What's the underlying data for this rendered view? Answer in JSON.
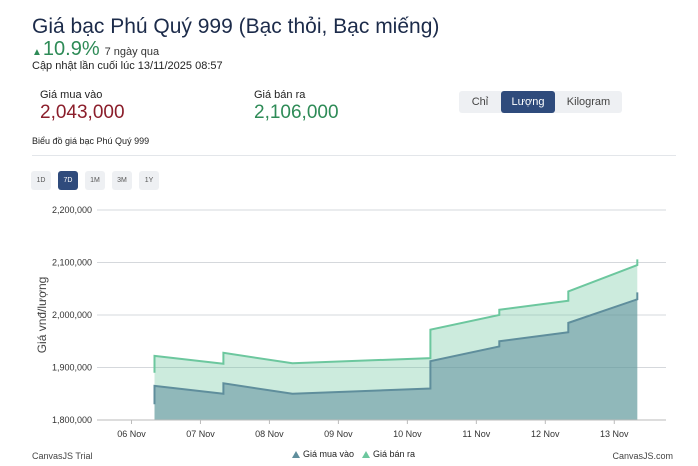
{
  "header": {
    "title": "Giá bạc Phú Quý 999 (Bạc thỏi, Bạc miếng)",
    "change_value": "10.9%",
    "change_period": "7 ngày qua",
    "updated": "Cập nhật lần cuối lúc 13/11/2025 08:57"
  },
  "prices": {
    "buy_label": "Giá mua vào",
    "buy_value": "2,043,000",
    "sell_label": "Giá bán ra",
    "sell_value": "2,106,000"
  },
  "unit_tabs": [
    {
      "label": "Chỉ",
      "active": false
    },
    {
      "label": "Lượng",
      "active": true
    },
    {
      "label": "Kilogram",
      "active": false
    }
  ],
  "chart_caption": "Biểu đồ giá bạc Phú Quý 999",
  "range_buttons": [
    {
      "label": "1D",
      "active": false
    },
    {
      "label": "7D",
      "active": true
    },
    {
      "label": "1M",
      "active": false
    },
    {
      "label": "3M",
      "active": false
    },
    {
      "label": "1Y",
      "active": false
    }
  ],
  "colors": {
    "buy_series": "#5f8e9c",
    "sell_series": "#6cc79e",
    "accent": "#2f4b7c",
    "up": "#2e8b57",
    "buy_value": "#8b1e2b"
  },
  "chart_data": {
    "type": "area",
    "ylabel": "Giá vnđ/lượng",
    "ylim": [
      1800000,
      2200000
    ],
    "yticks": [
      1800000,
      1900000,
      2000000,
      2100000,
      2200000
    ],
    "ytick_labels": [
      "1,800,000",
      "1,900,000",
      "2,000,000",
      "2,100,000",
      "2,200,000"
    ],
    "xlim": [
      "2025-11-05T12:00",
      "2025-11-13T18:00"
    ],
    "xticks": [
      "2025-11-06",
      "2025-11-07",
      "2025-11-08",
      "2025-11-09",
      "2025-11-10",
      "2025-11-11",
      "2025-11-12",
      "2025-11-13"
    ],
    "xtick_labels": [
      "06 Nov",
      "07 Nov",
      "08 Nov",
      "09 Nov",
      "10 Nov",
      "11 Nov",
      "12 Nov",
      "13 Nov"
    ],
    "grid": true,
    "legend_position": "bottom",
    "series": [
      {
        "name": "Giá mua vào",
        "points": [
          [
            "2025-11-06T08:00",
            1830000
          ],
          [
            "2025-11-06T08:00",
            1865000
          ],
          [
            "2025-11-07T08:00",
            1850000
          ],
          [
            "2025-11-07T08:00",
            1870000
          ],
          [
            "2025-11-08T08:00",
            1850000
          ],
          [
            "2025-11-10T08:00",
            1860000
          ],
          [
            "2025-11-10T08:00",
            1912000
          ],
          [
            "2025-11-11T08:00",
            1940000
          ],
          [
            "2025-11-11T08:00",
            1950000
          ],
          [
            "2025-11-12T08:00",
            1967000
          ],
          [
            "2025-11-12T08:00",
            1985000
          ],
          [
            "2025-11-13T08:00",
            2030000
          ],
          [
            "2025-11-13T08:00",
            2043000
          ]
        ]
      },
      {
        "name": "Giá bán ra",
        "points": [
          [
            "2025-11-06T08:00",
            1890000
          ],
          [
            "2025-11-06T08:00",
            1922000
          ],
          [
            "2025-11-07T08:00",
            1907000
          ],
          [
            "2025-11-07T08:00",
            1928000
          ],
          [
            "2025-11-08T08:00",
            1908000
          ],
          [
            "2025-11-10T08:00",
            1918000
          ],
          [
            "2025-11-10T08:00",
            1972000
          ],
          [
            "2025-11-11T08:00",
            2000000
          ],
          [
            "2025-11-11T08:00",
            2010000
          ],
          [
            "2025-11-12T08:00",
            2027000
          ],
          [
            "2025-11-12T08:00",
            2045000
          ],
          [
            "2025-11-13T08:00",
            2095000
          ],
          [
            "2025-11-13T08:00",
            2106000
          ]
        ]
      }
    ]
  },
  "credits": {
    "trial": "CanvasJS Trial",
    "site": "CanvasJS.com"
  }
}
